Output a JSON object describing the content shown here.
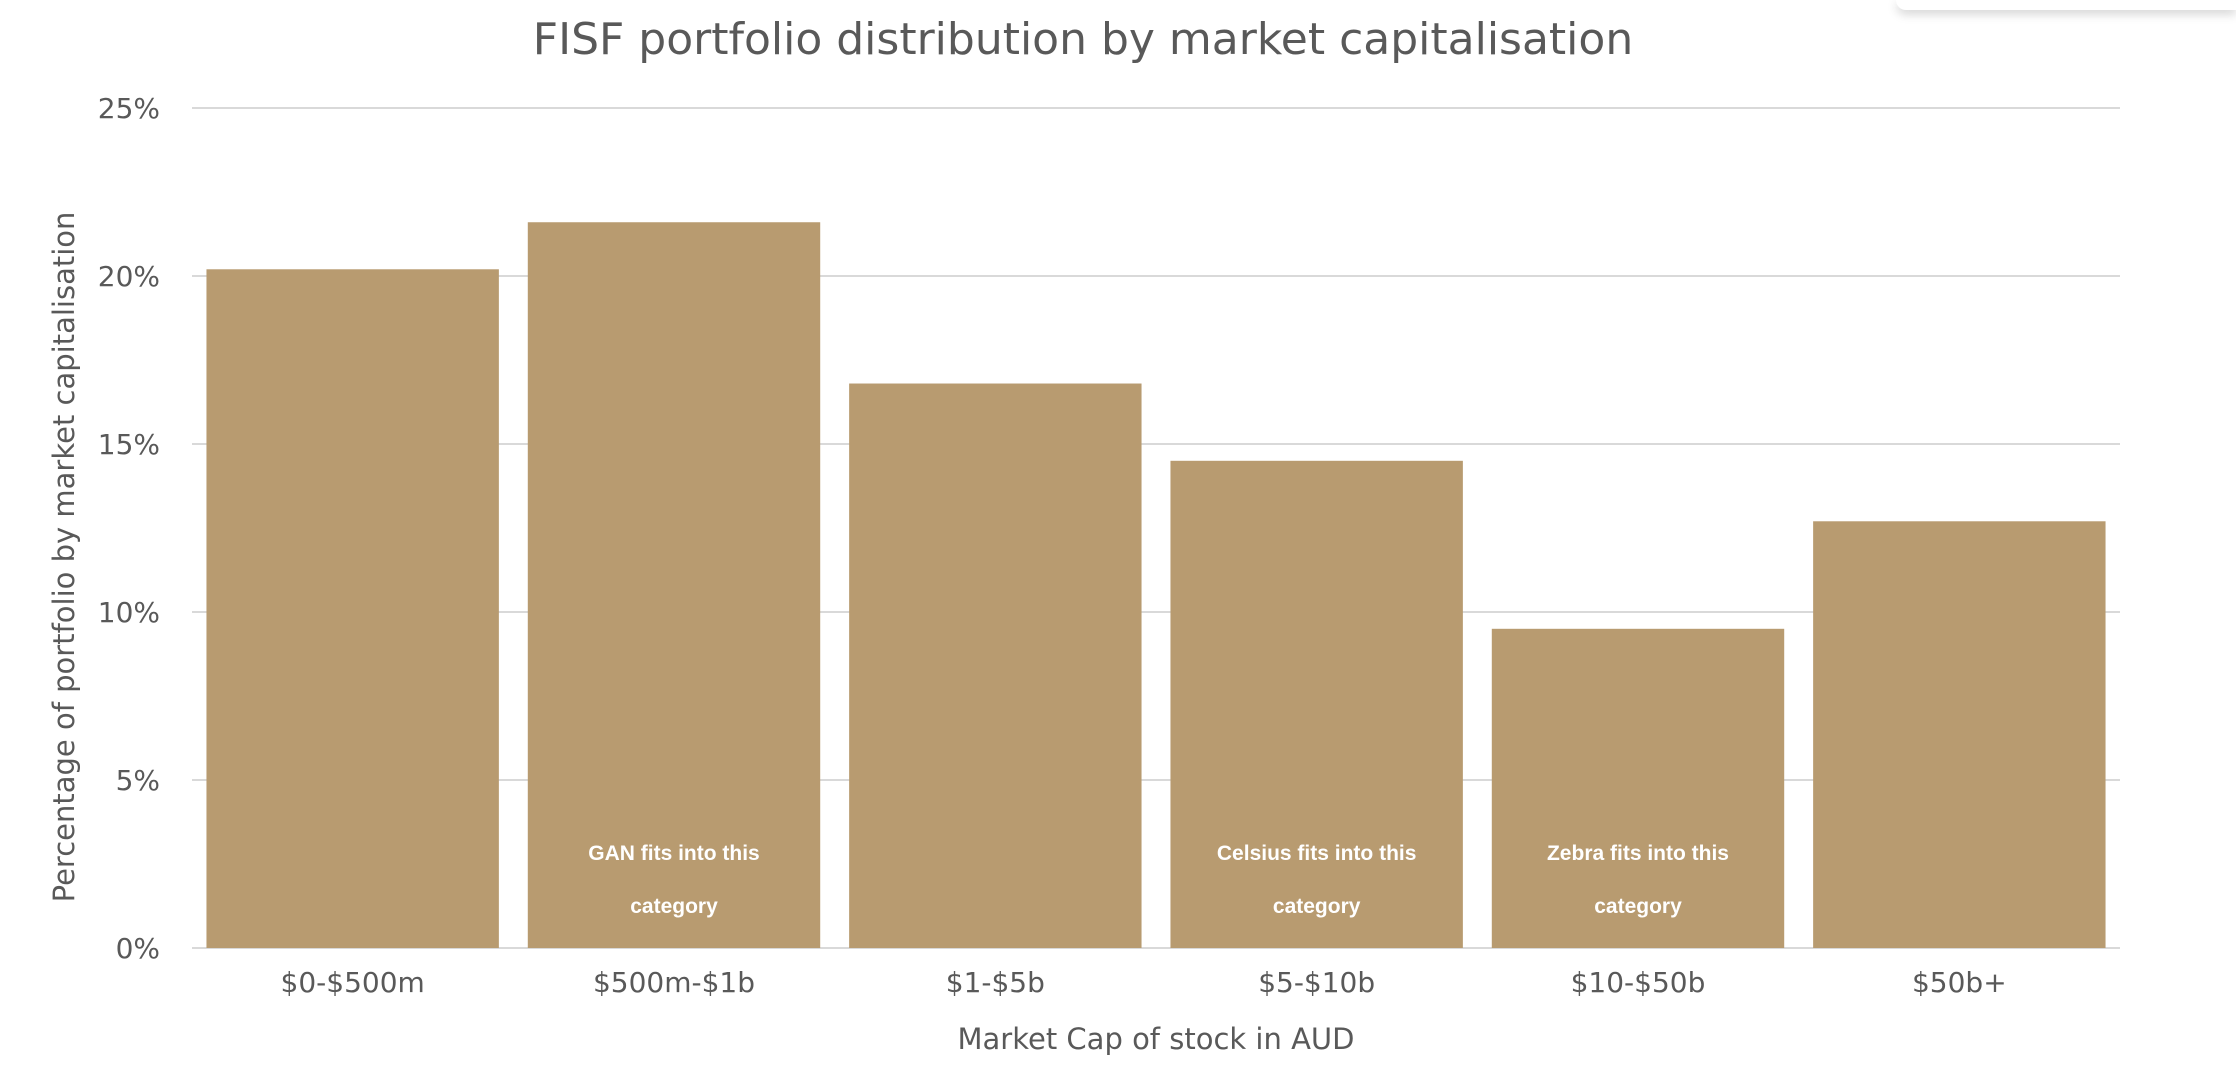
{
  "chart_data": {
    "type": "bar",
    "title": "FISF portfolio distribution by market capitalisation",
    "xlabel": "Market Cap of stock in AUD",
    "ylabel": "Percentage of portfolio by market capitalisation",
    "categories": [
      "$0-$500m",
      "$500m-$1b",
      "$1-$5b",
      "$5-$10b",
      "$10-$50b",
      "$50b+"
    ],
    "values": [
      20.2,
      21.6,
      16.8,
      14.5,
      9.5,
      12.7
    ],
    "ylim": [
      0,
      25
    ],
    "yticks": [
      {
        "value": 0,
        "label": "0%"
      },
      {
        "value": 5,
        "label": "5%"
      },
      {
        "value": 10,
        "label": "10%"
      },
      {
        "value": 15,
        "label": "15%"
      },
      {
        "value": 20,
        "label": "20%"
      },
      {
        "value": 25,
        "label": "25%"
      }
    ],
    "grid": true,
    "bar_color": "#b89b70",
    "annotations": [
      {
        "category": "$500m-$1b",
        "lines": [
          "GAN fits into this",
          "category"
        ]
      },
      {
        "category": "$5-$10b",
        "lines": [
          "Celsius fits into this",
          "category"
        ]
      },
      {
        "category": "$10-$50b",
        "lines": [
          "Zebra fits into this",
          "category"
        ]
      }
    ]
  }
}
